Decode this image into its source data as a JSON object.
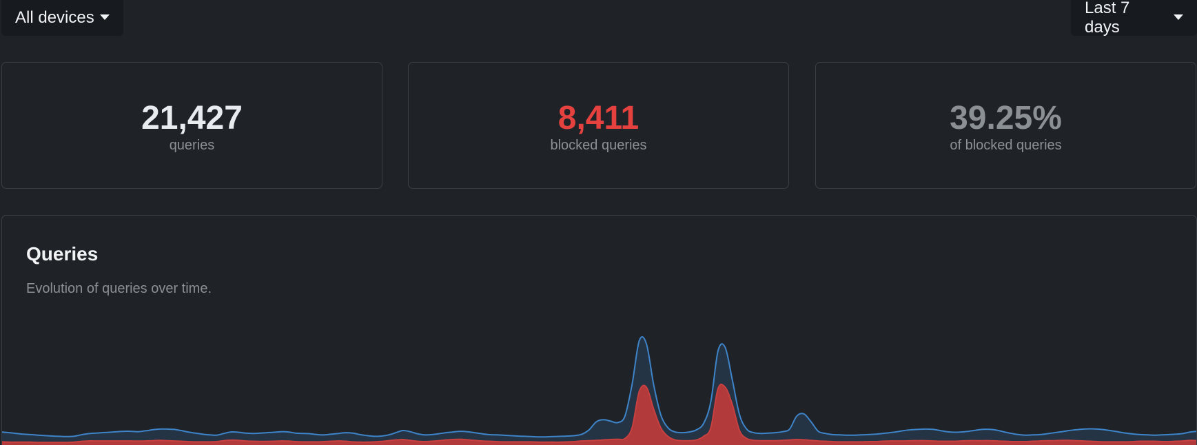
{
  "filters": {
    "devices_label": "All devices",
    "range_label": "Last 7 days"
  },
  "stats": {
    "queries": {
      "value": "21,427",
      "label": "queries"
    },
    "blocked": {
      "value": "8,411",
      "label": "blocked queries",
      "color": "#e5423f"
    },
    "percent": {
      "value": "39.25%",
      "label": "of blocked queries"
    }
  },
  "chart_card": {
    "title": "Queries",
    "subtitle": "Evolution of queries over time."
  },
  "colors": {
    "background": "#1f2328",
    "total_line": "#3e84c9",
    "total_fill": "#253445",
    "blocked_line": "#c94040",
    "blocked_fill": "#b33a3a"
  },
  "chart_data": {
    "type": "area",
    "title": "Queries",
    "subtitle": "Evolution of queries over time.",
    "xlabel": "",
    "ylabel": "",
    "grid": false,
    "legend": "none",
    "ylim": [
      0,
      1000
    ],
    "x": [
      0,
      1,
      2,
      3,
      4,
      5,
      6,
      7,
      8,
      9,
      10,
      11,
      12,
      13,
      14,
      15,
      16,
      17,
      18,
      19,
      20,
      21,
      22,
      23,
      24,
      25,
      26,
      27,
      28,
      29,
      30,
      31,
      32,
      33,
      34,
      35,
      36,
      37,
      38,
      39,
      40,
      41,
      42,
      43,
      44,
      45,
      46,
      47,
      48,
      49,
      50,
      51,
      52,
      53,
      54,
      55,
      56,
      57,
      58,
      59,
      60,
      61,
      62,
      63,
      64,
      65,
      66,
      67,
      68,
      69,
      70,
      71,
      72,
      73,
      74,
      75,
      76,
      77,
      78,
      79,
      80,
      81,
      82,
      83,
      84,
      85,
      86,
      87,
      88,
      89,
      90,
      91,
      92,
      93,
      94,
      95,
      96,
      97,
      98,
      99,
      100,
      101,
      102,
      103,
      104,
      105,
      106,
      107,
      108,
      109,
      110,
      111,
      112,
      113,
      114,
      115,
      116,
      117,
      118,
      119,
      120,
      121,
      122,
      123,
      124,
      125,
      126,
      127,
      128,
      129,
      130,
      131,
      132,
      133,
      134,
      135,
      136,
      137,
      138,
      139,
      140,
      141,
      142,
      143,
      144,
      145,
      146,
      147,
      148,
      149,
      150,
      151,
      152,
      153,
      154,
      155,
      156,
      157,
      158,
      159,
      160,
      161,
      162,
      163,
      164,
      165,
      166,
      167
    ],
    "series": [
      {
        "values": [
          90,
          85,
          80,
          75,
          72,
          68,
          65,
          62,
          60,
          58,
          60,
          70,
          78,
          82,
          85,
          88,
          92,
          95,
          95,
          92,
          98,
          105,
          110,
          110,
          108,
          100,
          90,
          82,
          75,
          70,
          68,
          80,
          90,
          88,
          82,
          80,
          82,
          85,
          88,
          92,
          90,
          82,
          80,
          78,
          72,
          70,
          75,
          80,
          85,
          82,
          72,
          65,
          60,
          62,
          70,
          85,
          100,
          92,
          78,
          70,
          72,
          78,
          85,
          90,
          95,
          92,
          85,
          78,
          72,
          70,
          68,
          65,
          62,
          60,
          58,
          56,
          56,
          58,
          60,
          62,
          65,
          75,
          105,
          160,
          175,
          165,
          155,
          200,
          420,
          720,
          700,
          420,
          210,
          120,
          90,
          85,
          90,
          105,
          150,
          300,
          650,
          675,
          450,
          210,
          110,
          85,
          80,
          82,
          85,
          92,
          110,
          200,
          215,
          160,
          95,
          80,
          72,
          70,
          68,
          68,
          70,
          72,
          75,
          80,
          85,
          92,
          100,
          105,
          108,
          110,
          108,
          100,
          92,
          88,
          90,
          95,
          102,
          108,
          108,
          102,
          90,
          80,
          72,
          68,
          70,
          72,
          78,
          85,
          92,
          100,
          105,
          110,
          112,
          110,
          105,
          98,
          90,
          82,
          76,
          72,
          70,
          68,
          70,
          72,
          75,
          80,
          90,
          95
        ]
      },
      {
        "values": [
          22,
          20,
          20,
          20,
          20,
          18,
          18,
          18,
          18,
          18,
          20,
          25,
          28,
          28,
          28,
          28,
          28,
          28,
          28,
          27,
          28,
          30,
          32,
          30,
          28,
          26,
          24,
          22,
          22,
          22,
          24,
          30,
          34,
          32,
          28,
          26,
          25,
          25,
          26,
          28,
          27,
          24,
          22,
          22,
          22,
          24,
          26,
          28,
          26,
          22,
          20,
          20,
          22,
          25,
          30,
          35,
          38,
          32,
          26,
          24,
          26,
          30,
          35,
          38,
          40,
          36,
          32,
          28,
          26,
          24,
          22,
          22,
          22,
          22,
          22,
          20,
          20,
          20,
          20,
          22,
          24,
          28,
          30,
          32,
          35,
          38,
          40,
          45,
          120,
          370,
          400,
          250,
          120,
          60,
          35,
          30,
          30,
          35,
          60,
          120,
          390,
          400,
          280,
          100,
          45,
          32,
          30,
          30,
          30,
          32,
          35,
          38,
          36,
          32,
          28,
          26,
          24,
          22,
          22,
          22,
          22,
          24,
          24,
          26,
          28,
          28,
          28,
          30,
          30,
          30,
          28,
          26,
          26,
          26,
          28,
          30,
          30,
          30,
          30,
          28,
          26,
          24,
          24,
          24,
          26,
          28,
          30,
          30,
          32,
          32,
          30,
          28,
          26,
          24,
          22,
          22,
          22,
          22,
          24,
          26,
          26,
          26,
          24,
          24,
          26,
          28,
          32,
          30
        ]
      }
    ]
  }
}
